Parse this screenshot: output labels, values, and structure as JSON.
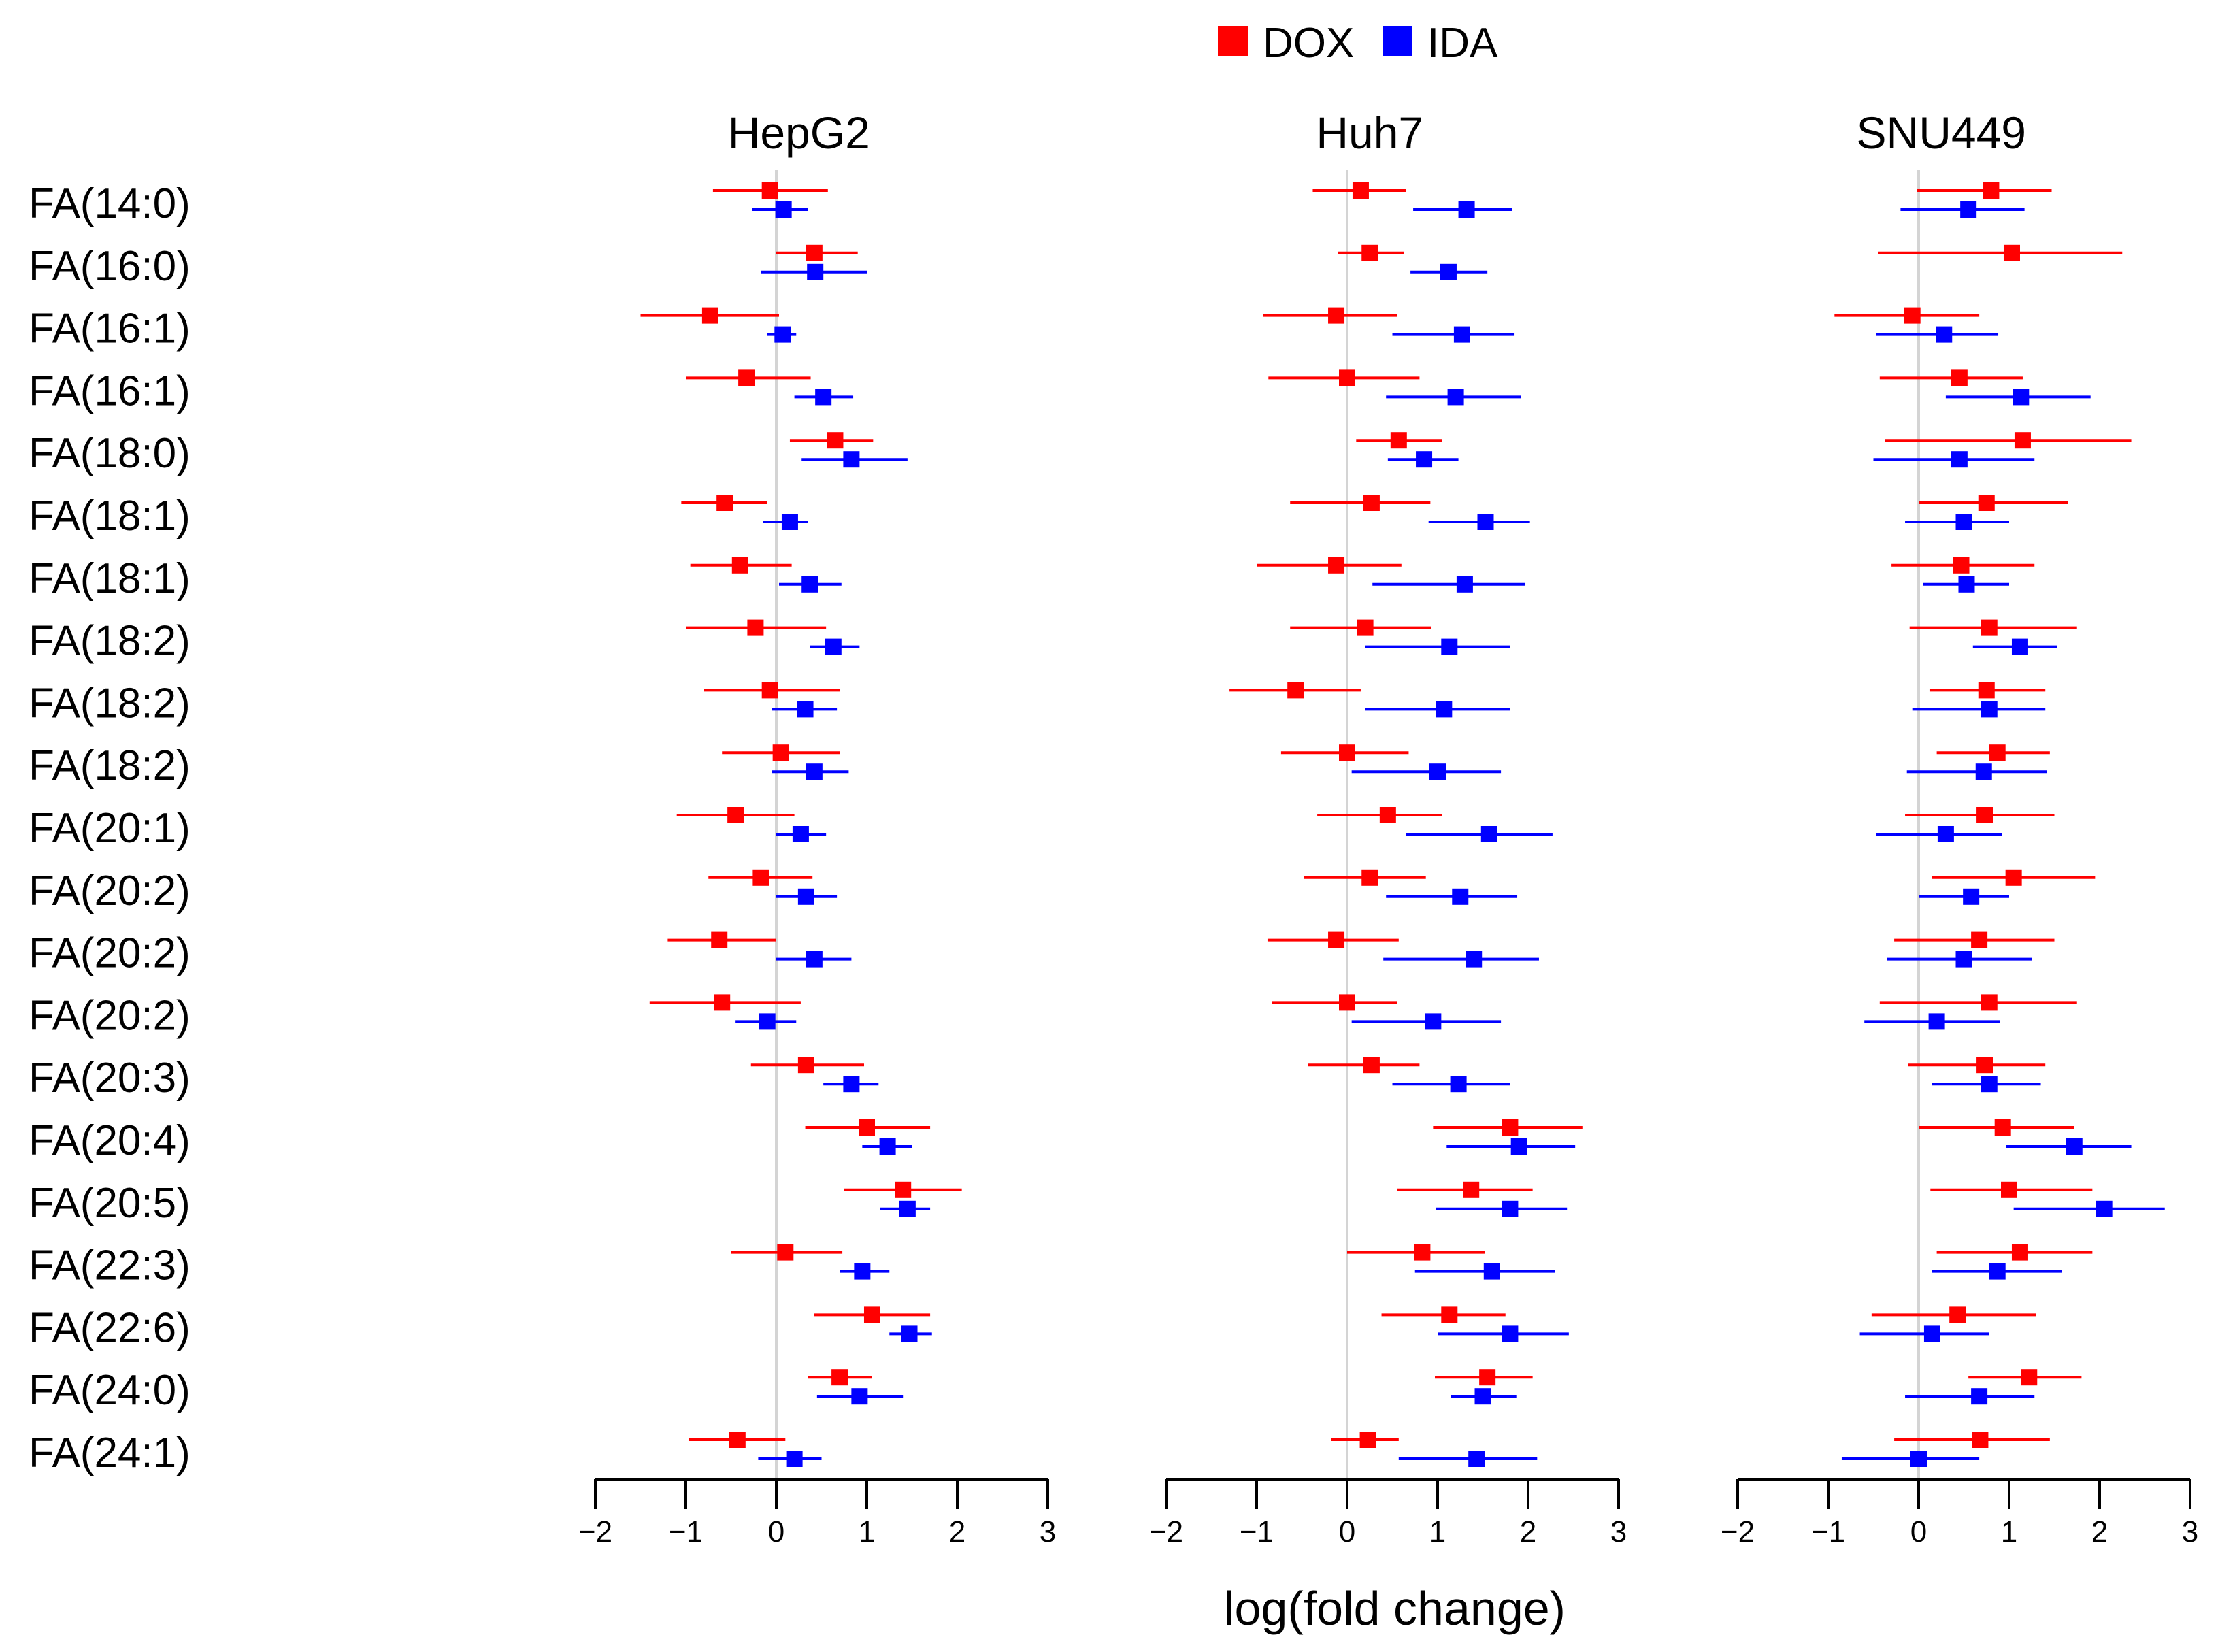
{
  "chart_data": {
    "type": "forest",
    "xlabel": "log(fold change)",
    "xlim": [
      -2,
      3
    ],
    "xticks": [
      -2,
      -1,
      0,
      1,
      2,
      3
    ],
    "xtick_labels": [
      "−2",
      "−1",
      "0",
      "1",
      "2",
      "3"
    ],
    "legend": [
      {
        "name": "DOX",
        "color": "#ff0000"
      },
      {
        "name": "IDA",
        "color": "#0000ff"
      }
    ],
    "rows": [
      "FA(14:0)",
      "FA(16:0)",
      "FA(16:1)",
      "FA(16:1)",
      "FA(18:0)",
      "FA(18:1)",
      "FA(18:1)",
      "FA(18:2)",
      "FA(18:2)",
      "FA(18:2)",
      "FA(20:1)",
      "FA(20:2)",
      "FA(20:2)",
      "FA(20:2)",
      "FA(20:3)",
      "FA(20:4)",
      "FA(20:5)",
      "FA(22:3)",
      "FA(22:6)",
      "FA(24:0)",
      "FA(24:1)"
    ],
    "panels": [
      {
        "title": "HepG2",
        "series": [
          {
            "name": "DOX",
            "est": [
              -0.07,
              0.42,
              -0.73,
              -0.33,
              0.65,
              -0.57,
              -0.4,
              -0.23,
              -0.07,
              0.05,
              -0.45,
              -0.17,
              -0.63,
              -0.6,
              0.33,
              1.0,
              1.4,
              0.1,
              1.06,
              0.7,
              -0.43
            ],
            "lo": [
              -0.7,
              0.0,
              -1.5,
              -1.0,
              0.15,
              -1.05,
              -0.95,
              -1.0,
              -0.8,
              -0.6,
              -1.1,
              -0.75,
              -1.2,
              -1.4,
              -0.28,
              0.32,
              0.75,
              -0.5,
              0.42,
              0.35,
              -0.97
            ],
            "hi": [
              0.57,
              0.9,
              0.03,
              0.38,
              1.07,
              -0.1,
              0.17,
              0.55,
              0.7,
              0.7,
              0.2,
              0.4,
              0.0,
              0.27,
              0.97,
              1.7,
              2.05,
              0.73,
              1.7,
              1.06,
              0.1
            ]
          },
          {
            "name": "IDA",
            "est": [
              0.08,
              0.43,
              0.07,
              0.52,
              0.83,
              0.15,
              0.37,
              0.63,
              0.32,
              0.42,
              0.27,
              0.33,
              0.42,
              -0.1,
              0.83,
              1.23,
              1.45,
              0.95,
              1.47,
              0.92,
              0.2
            ],
            "lo": [
              -0.27,
              -0.17,
              -0.1,
              0.2,
              0.28,
              -0.15,
              0.03,
              0.37,
              -0.05,
              -0.05,
              0.0,
              0.0,
              0.0,
              -0.45,
              0.52,
              0.95,
              1.15,
              0.7,
              1.25,
              0.45,
              -0.2
            ],
            "hi": [
              0.35,
              1.0,
              0.22,
              0.85,
              1.45,
              0.35,
              0.72,
              0.92,
              0.67,
              0.8,
              0.55,
              0.67,
              0.83,
              0.22,
              1.13,
              1.5,
              1.7,
              1.25,
              1.72,
              1.4,
              0.5
            ]
          }
        ]
      },
      {
        "title": "Huh7",
        "series": [
          {
            "name": "DOX",
            "est": [
              0.15,
              0.25,
              -0.12,
              0.0,
              0.57,
              0.27,
              -0.12,
              0.2,
              -0.57,
              0.0,
              0.45,
              0.25,
              -0.12,
              0.0,
              0.27,
              1.8,
              1.37,
              0.83,
              1.13,
              1.55,
              0.23
            ],
            "lo": [
              -0.38,
              -0.1,
              -0.93,
              -0.87,
              0.1,
              -0.63,
              -1.0,
              -0.63,
              -1.3,
              -0.73,
              -0.33,
              -0.48,
              -0.88,
              -0.83,
              -0.43,
              0.95,
              0.55,
              0.0,
              0.38,
              0.97,
              -0.18
            ],
            "hi": [
              0.65,
              0.63,
              0.55,
              0.8,
              1.05,
              0.92,
              0.6,
              0.93,
              0.15,
              0.68,
              1.05,
              0.87,
              0.57,
              0.55,
              0.8,
              2.6,
              2.05,
              1.52,
              1.75,
              2.05,
              0.57
            ]
          },
          {
            "name": "IDA",
            "est": [
              1.32,
              1.12,
              1.27,
              1.2,
              0.85,
              1.53,
              1.3,
              1.13,
              1.07,
              1.0,
              1.57,
              1.25,
              1.4,
              0.95,
              1.23,
              1.9,
              1.8,
              1.6,
              1.8,
              1.5,
              1.43
            ],
            "lo": [
              0.73,
              0.7,
              0.5,
              0.43,
              0.45,
              0.9,
              0.28,
              0.2,
              0.2,
              0.05,
              0.65,
              0.43,
              0.4,
              0.05,
              0.5,
              1.1,
              0.98,
              0.75,
              1.0,
              1.15,
              0.57
            ],
            "hi": [
              1.82,
              1.55,
              1.85,
              1.92,
              1.23,
              2.02,
              1.97,
              1.8,
              1.8,
              1.7,
              2.27,
              1.88,
              2.12,
              1.7,
              1.8,
              2.52,
              2.43,
              2.3,
              2.45,
              1.87,
              2.1
            ]
          }
        ]
      },
      {
        "title": "SNU449",
        "series": [
          {
            "name": "DOX",
            "est": [
              0.8,
              1.03,
              -0.07,
              0.45,
              1.15,
              0.75,
              0.47,
              0.78,
              0.75,
              0.87,
              0.73,
              1.05,
              0.67,
              0.78,
              0.73,
              0.93,
              1.0,
              1.12,
              0.43,
              1.22,
              0.68
            ],
            "lo": [
              -0.02,
              -0.45,
              -0.93,
              -0.43,
              -0.37,
              0.0,
              -0.3,
              -0.1,
              0.12,
              0.2,
              -0.15,
              0.15,
              -0.27,
              -0.43,
              -0.12,
              0.0,
              0.13,
              0.2,
              -0.52,
              0.55,
              -0.27
            ],
            "hi": [
              1.47,
              2.25,
              0.67,
              1.15,
              2.35,
              1.65,
              1.28,
              1.75,
              1.4,
              1.45,
              1.5,
              1.95,
              1.5,
              1.75,
              1.4,
              1.72,
              1.92,
              1.92,
              1.3,
              1.8,
              1.45
            ]
          },
          {
            "name": "IDA",
            "est": [
              0.55,
              null,
              0.28,
              1.13,
              0.45,
              0.5,
              0.53,
              1.12,
              0.78,
              0.72,
              0.3,
              0.58,
              0.5,
              0.2,
              0.78,
              1.72,
              2.05,
              0.87,
              0.15,
              0.67,
              0.0
            ],
            "lo": [
              -0.2,
              null,
              -0.47,
              0.3,
              -0.5,
              -0.15,
              0.05,
              0.6,
              -0.07,
              -0.13,
              -0.47,
              0.0,
              -0.35,
              -0.6,
              0.15,
              0.97,
              1.05,
              0.15,
              -0.65,
              -0.15,
              -0.85
            ],
            "hi": [
              1.17,
              null,
              0.88,
              1.9,
              1.28,
              1.0,
              1.0,
              1.53,
              1.4,
              1.42,
              0.92,
              1.0,
              1.25,
              0.9,
              1.35,
              2.35,
              2.72,
              1.58,
              0.78,
              1.28,
              0.67
            ]
          }
        ]
      }
    ]
  }
}
